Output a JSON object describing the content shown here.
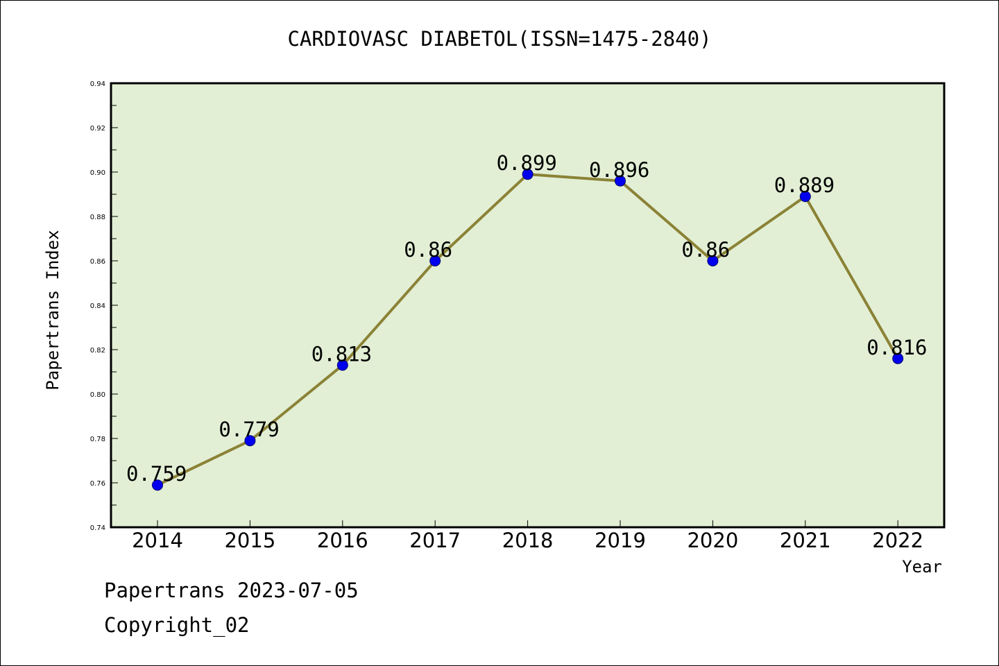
{
  "chart_data": {
    "type": "line",
    "title": "CARDIOVASC DIABETOL(ISSN=1475-2840)",
    "xlabel": "Year",
    "ylabel": "Papertrans Index",
    "categories": [
      "2014",
      "2015",
      "2016",
      "2017",
      "2018",
      "2019",
      "2020",
      "2021",
      "2022"
    ],
    "series": [
      {
        "values": [
          0.759,
          0.779,
          0.813,
          0.86,
          0.899,
          0.896,
          0.86,
          0.889,
          0.816
        ],
        "labels": [
          "0.759",
          "0.779",
          "0.813",
          "0.86",
          "0.899",
          "0.896",
          "0.86",
          "0.889",
          "0.816"
        ]
      }
    ],
    "ylim": [
      0.74,
      0.94
    ],
    "yticks": [
      "0.74",
      "0.76",
      "0.78",
      "0.80",
      "0.82",
      "0.84",
      "0.86",
      "0.88",
      "0.90",
      "0.92",
      "0.94"
    ],
    "grid": false,
    "colors": {
      "plot_background": "#e2efd5",
      "line": "#8b8236",
      "marker": "#0000ee",
      "marker_edge": "#00006e"
    }
  },
  "footer": {
    "date_line": "Papertrans 2023-07-05",
    "copyright_line": "Copyright_02"
  }
}
